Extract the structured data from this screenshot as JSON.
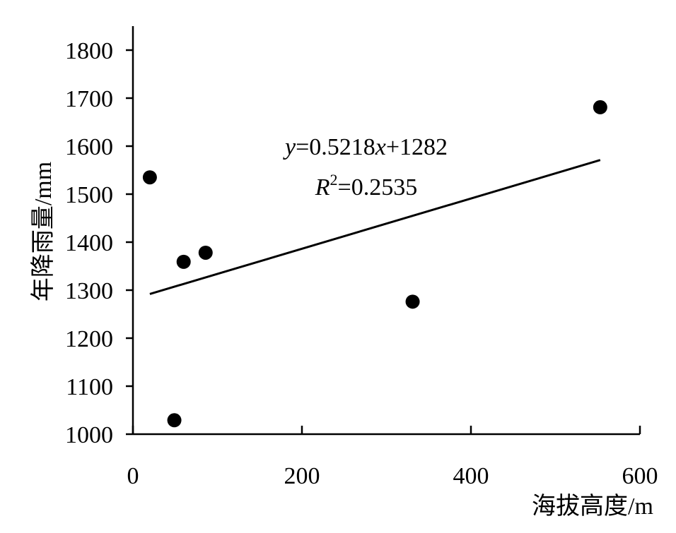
{
  "chart_data": {
    "type": "scatter",
    "x_label": "海拔高度/m",
    "y_label": "年降雨量/mm",
    "x": [
      20,
      49,
      60,
      86,
      331,
      553
    ],
    "values": [
      1535,
      1029,
      1359,
      1378,
      1276,
      1681
    ],
    "color": "#000000",
    "xlim": [
      0,
      600
    ],
    "xticks": [
      0,
      200,
      400,
      600
    ],
    "ylim": [
      1000,
      1850
    ],
    "yticks": [
      1000,
      1100,
      1200,
      1300,
      1400,
      1500,
      1600,
      1700,
      1800
    ],
    "grid": false,
    "trendline": {
      "x": [
        20,
        553
      ],
      "values": [
        1292,
        1571
      ]
    },
    "equation": [
      "y",
      "=0.5218",
      "x",
      "+1282"
    ],
    "r2_label": [
      "R",
      "2",
      "=0.2535"
    ]
  }
}
